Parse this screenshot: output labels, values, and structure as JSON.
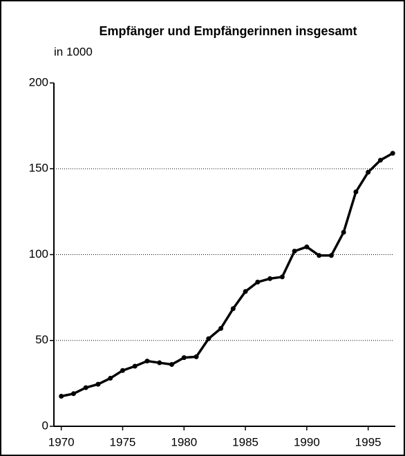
{
  "chart_data": {
    "type": "line",
    "title": "Empfänger und Empfängerinnen insgesamt",
    "ylabel": "in 1000",
    "x": [
      1970,
      1971,
      1972,
      1973,
      1974,
      1975,
      1976,
      1977,
      1978,
      1979,
      1980,
      1981,
      1982,
      1983,
      1984,
      1985,
      1986,
      1987,
      1988,
      1989,
      1990,
      1991,
      1992,
      1993,
      1994,
      1995,
      1996,
      1997
    ],
    "series": [
      {
        "name": null,
        "color": "#000000",
        "values": [
          17.5,
          19,
          22.5,
          24.5,
          28,
          32.5,
          35,
          38,
          37,
          36,
          40,
          40.5,
          51,
          57,
          68.5,
          78.5,
          84,
          86,
          87,
          102,
          104.5,
          99.5,
          99.5,
          113,
          136.5,
          148,
          155,
          159
        ]
      }
    ],
    "xlim": [
      1969.4,
      1997.1
    ],
    "xticks": [
      1970,
      1975,
      1980,
      1985,
      1990,
      1995
    ],
    "ylim": [
      0,
      200
    ],
    "yticks": [
      0,
      50,
      100,
      150,
      200
    ],
    "grid": true
  }
}
